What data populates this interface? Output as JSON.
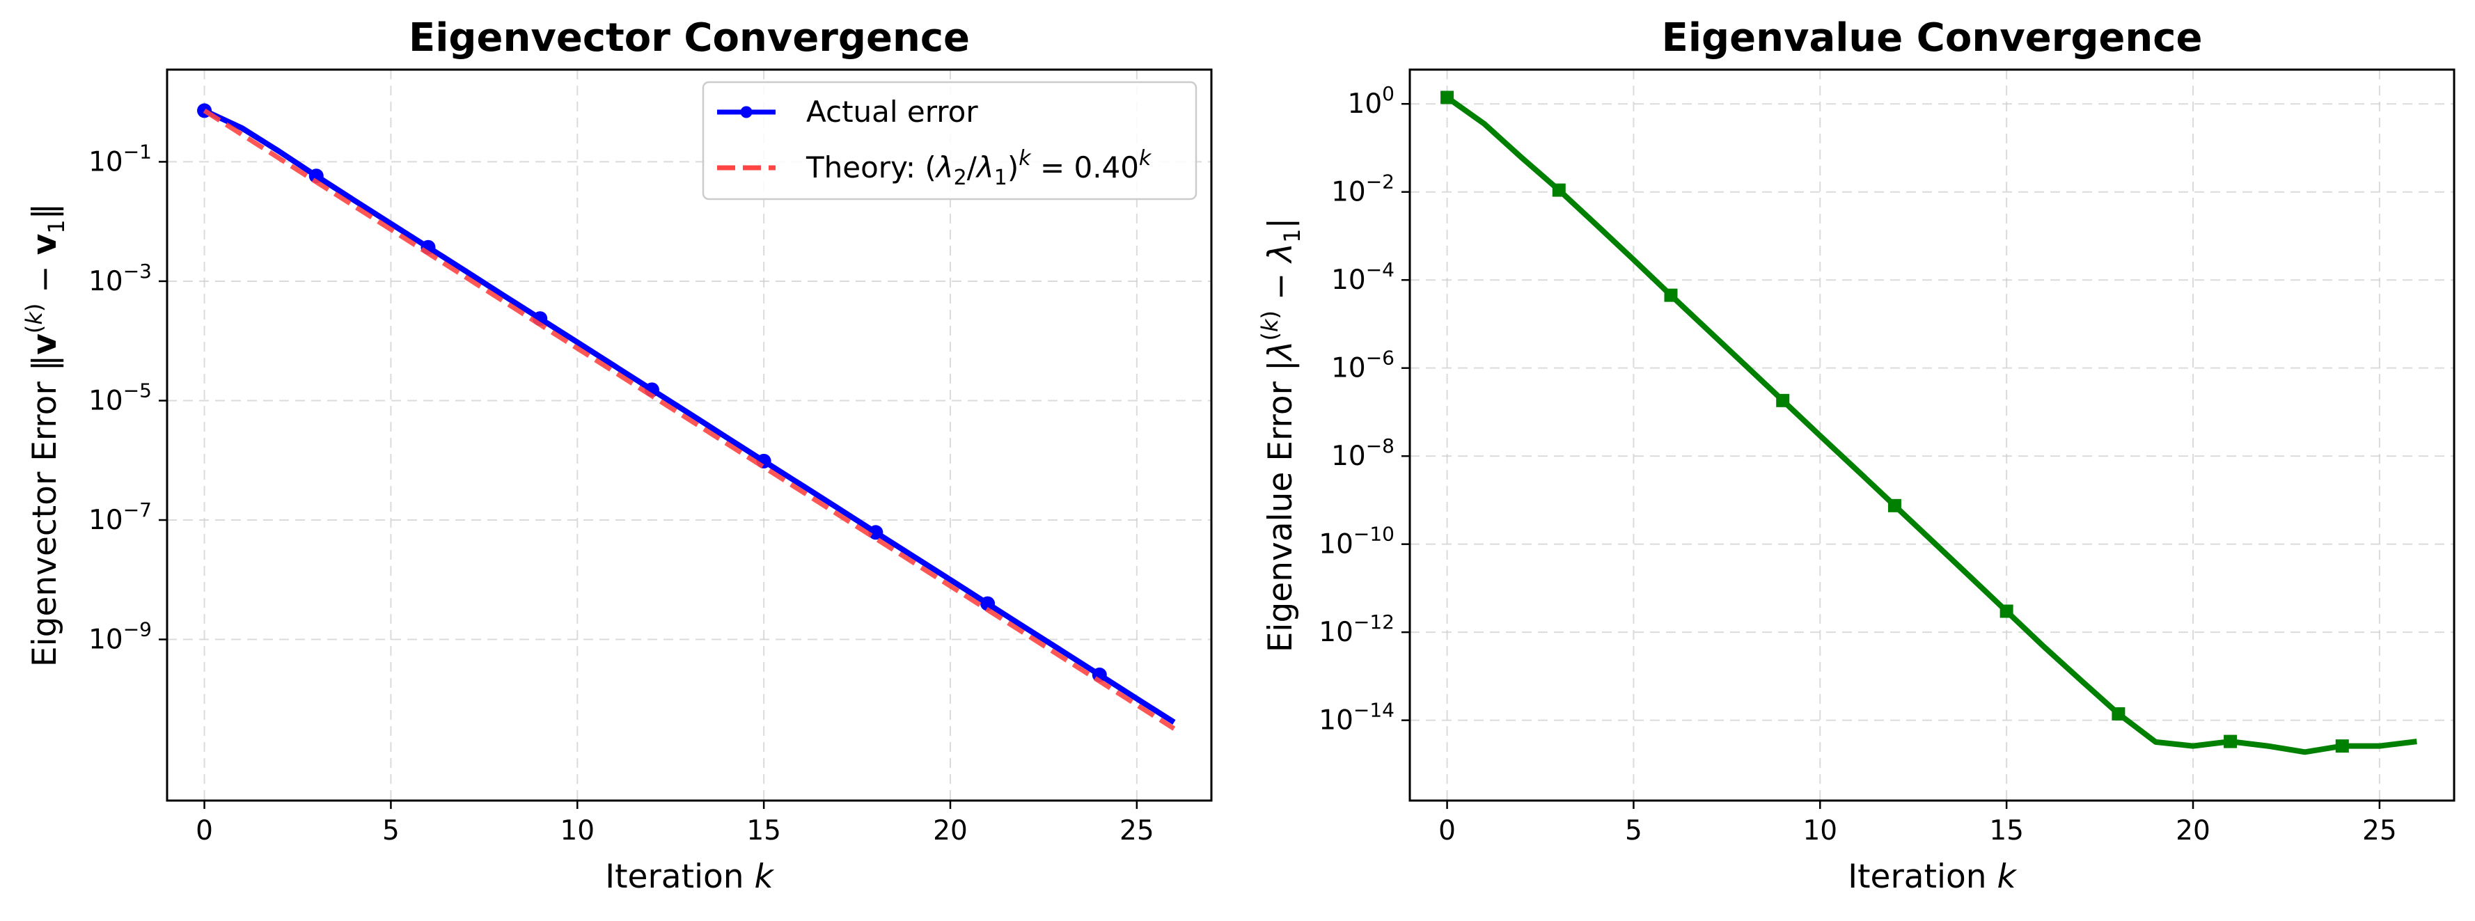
{
  "chart_data": [
    {
      "type": "line",
      "title": "Eigenvector Convergence",
      "xlabel": "Iteration k",
      "ylabel": "Eigenvector Error ‖v(k) − v1‖",
      "yscale": "log",
      "xlim": [
        -1,
        27
      ],
      "ylim": [
        2e-12,
        3.5
      ],
      "grid": true,
      "legend_position": "top-right",
      "xticks": [
        0,
        5,
        10,
        15,
        20,
        25
      ],
      "yticks": [
        {
          "value": 0.1,
          "base": "10",
          "exp": "−1"
        },
        {
          "value": 0.001,
          "base": "10",
          "exp": "−3"
        },
        {
          "value": 1e-05,
          "base": "10",
          "exp": "−5"
        },
        {
          "value": 1e-07,
          "base": "10",
          "exp": "−7"
        },
        {
          "value": 1e-09,
          "base": "10",
          "exp": "−9"
        }
      ],
      "series": [
        {
          "name": "Actual error",
          "color": "#0000ff",
          "style": "solid",
          "marker": "circle",
          "marker_every": 3,
          "x": [
            0,
            1,
            2,
            3,
            4,
            5,
            6,
            7,
            8,
            9,
            10,
            11,
            12,
            13,
            14,
            15,
            16,
            17,
            18,
            19,
            20,
            21,
            22,
            23,
            24,
            25,
            26
          ],
          "y": [
            0.72,
            0.37,
            0.15,
            0.058,
            0.023,
            0.0092,
            0.0037,
            0.00148,
            0.00059,
            0.000237,
            9.5e-05,
            3.8e-05,
            1.52e-05,
            6.1e-06,
            2.43e-06,
            9.7e-07,
            3.9e-07,
            1.56e-07,
            6.2e-08,
            2.49e-08,
            1e-08,
            3.98e-09,
            1.59e-09,
            6.4e-10,
            2.55e-10,
            1.02e-10,
            4.1e-11
          ]
        },
        {
          "name": "Theory: (λ2/λ1)^k = 0.40^k",
          "color": "#ff4444",
          "style": "dashed",
          "x": [
            0,
            26
          ],
          "y": [
            0.72,
            3.2e-11
          ]
        }
      ]
    },
    {
      "type": "line",
      "title": "Eigenvalue Convergence",
      "xlabel": "Iteration k",
      "ylabel": "Eigenvalue Error |λ(k) − λ1|",
      "yscale": "log",
      "xlim": [
        -1,
        27
      ],
      "ylim": [
        1.5e-16,
        6
      ],
      "grid": true,
      "xticks": [
        0,
        5,
        10,
        15,
        20,
        25
      ],
      "yticks": [
        {
          "value": 1,
          "base": "10",
          "exp": "0"
        },
        {
          "value": 0.01,
          "base": "10",
          "exp": "−2"
        },
        {
          "value": 0.0001,
          "base": "10",
          "exp": "−4"
        },
        {
          "value": 1e-06,
          "base": "10",
          "exp": "−6"
        },
        {
          "value": 1e-08,
          "base": "10",
          "exp": "−8"
        },
        {
          "value": 1e-10,
          "base": "10",
          "exp": "−10"
        },
        {
          "value": 1e-12,
          "base": "10",
          "exp": "−12"
        },
        {
          "value": 1e-14,
          "base": "10",
          "exp": "−14"
        }
      ],
      "series": [
        {
          "color": "#008000",
          "style": "solid",
          "marker": "square",
          "marker_every": 3,
          "x": [
            0,
            1,
            2,
            3,
            4,
            5,
            6,
            7,
            8,
            9,
            10,
            11,
            12,
            13,
            14,
            15,
            16,
            17,
            18,
            19,
            20,
            21,
            22,
            23,
            24,
            25,
            26
          ],
          "y": [
            1.4,
            0.35,
            0.06,
            0.011,
            0.0018,
            0.00029,
            4.5e-05,
            7.2e-06,
            1.15e-06,
            1.83e-07,
            2.9e-08,
            4.7e-09,
            7.5e-10,
            1.2e-10,
            1.9e-11,
            3e-12,
            4.7e-13,
            8e-14,
            1.4e-14,
            3.2e-15,
            2.6e-15,
            3.3e-15,
            2.6e-15,
            1.9e-15,
            2.6e-15,
            2.6e-15,
            3.3e-15
          ]
        }
      ]
    }
  ]
}
